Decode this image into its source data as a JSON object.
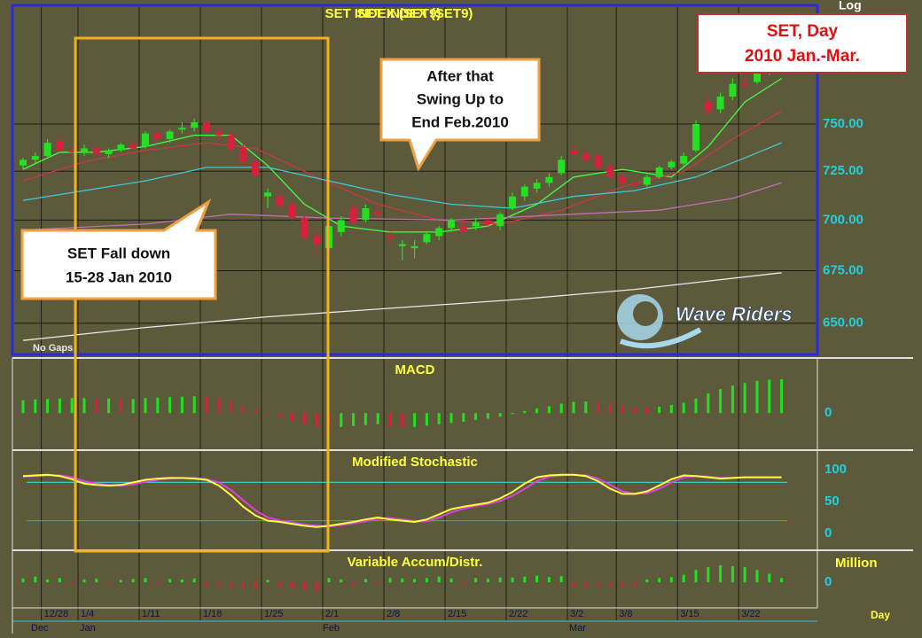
{
  "chart_data": [
    {
      "type": "candlestick",
      "title": "SET INDEX (SET9)",
      "scale_label": "Log",
      "log_scale": true,
      "note": "No Gaps",
      "categories": [
        null,
        null,
        "12/28",
        null,
        null,
        "1/4",
        null,
        null,
        null,
        null,
        "1/11",
        null,
        null,
        null,
        null,
        "1/18",
        null,
        null,
        null,
        null,
        "1/25",
        null,
        null,
        null,
        null,
        "2/1",
        null,
        null,
        null,
        null,
        "2/8",
        null,
        null,
        null,
        null,
        "2/15",
        null,
        null,
        null,
        null,
        "2/22",
        null,
        null,
        null,
        null,
        "3/2",
        null,
        null,
        null,
        "3/8",
        null,
        null,
        null,
        null,
        "3/15",
        null,
        null,
        null,
        null,
        "3/22",
        null,
        null,
        null
      ],
      "month_labels": [
        "Dec",
        "Jan",
        "Feb",
        "Mar"
      ],
      "x_unit": "Day",
      "open": [
        728,
        731,
        733,
        741,
        736,
        735,
        737,
        734,
        736,
        739,
        738,
        745,
        742,
        747,
        748,
        751,
        746,
        744,
        737,
        730,
        712,
        712,
        708,
        701,
        692,
        686,
        694,
        706,
        700,
        704,
        692,
        687,
        686,
        689,
        692,
        696,
        697,
        697,
        700,
        697,
        706,
        712,
        716,
        719,
        724,
        736,
        734,
        733,
        727,
        722,
        719,
        718,
        722,
        727,
        729,
        736,
        762,
        758,
        765,
        772,
        773,
        779,
        781
      ],
      "high": [
        732,
        735,
        742,
        743,
        738,
        739,
        738,
        737,
        740,
        741,
        746,
        747,
        747,
        751,
        753,
        752,
        748,
        746,
        739,
        731,
        716,
        715,
        710,
        703,
        696,
        699,
        702,
        708,
        708,
        708,
        694,
        690,
        690,
        694,
        697,
        701,
        700,
        701,
        702,
        704,
        714,
        718,
        721,
        724,
        733,
        739,
        736,
        734,
        729,
        724,
        721,
        723,
        728,
        731,
        735,
        752,
        765,
        767,
        775,
        776,
        780,
        784,
        786
      ],
      "low": [
        726,
        729,
        732,
        735,
        733,
        733,
        733,
        732,
        735,
        736,
        737,
        741,
        740,
        745,
        746,
        745,
        741,
        735,
        728,
        722,
        706,
        705,
        700,
        690,
        682,
        684,
        692,
        698,
        699,
        701,
        688,
        680,
        681,
        688,
        690,
        694,
        693,
        695,
        697,
        695,
        705,
        710,
        714,
        717,
        723,
        733,
        730,
        726,
        721,
        717,
        716,
        717,
        721,
        726,
        728,
        735,
        755,
        756,
        763,
        770,
        772,
        777,
        779
      ],
      "close": [
        731,
        733,
        740,
        736,
        735,
        737,
        734,
        736,
        739,
        737,
        745,
        742,
        746,
        748,
        751,
        746,
        744,
        737,
        730,
        723,
        714,
        707,
        701,
        691,
        688,
        697,
        700,
        699,
        706,
        703,
        691,
        688,
        687,
        693,
        696,
        700,
        694,
        699,
        698,
        703,
        712,
        717,
        719,
        722,
        731,
        734,
        731,
        727,
        722,
        719,
        718,
        722,
        727,
        730,
        733,
        750,
        757,
        765,
        772,
        771,
        778,
        781,
        783
      ],
      "up_color": "#22e022",
      "down_color": "#d8203c",
      "ylim": [
        637,
        815
      ],
      "yticks": [
        {
          "value": 750,
          "label": "750.00"
        },
        {
          "value": 725,
          "label": "725.00"
        },
        {
          "value": 700,
          "label": "700.00"
        },
        {
          "value": 675,
          "label": "675.00"
        },
        {
          "value": 650,
          "label": "650.00"
        }
      ],
      "moving_averages": [
        {
          "color": "#40ff40",
          "x": [
            0,
            3,
            6,
            10,
            14,
            17,
            20,
            23,
            26,
            30,
            34,
            38,
            42,
            45,
            49,
            53,
            56,
            59,
            62
          ],
          "values": [
            726,
            735,
            735,
            738,
            744,
            744,
            728,
            708,
            697,
            694,
            694,
            697,
            708,
            722,
            726,
            722,
            738,
            762,
            775
          ]
        },
        {
          "color": "#c83848",
          "x": [
            0,
            5,
            10,
            15,
            19,
            24,
            29,
            34,
            39,
            44,
            49,
            54,
            58,
            62
          ],
          "values": [
            720,
            730,
            736,
            740,
            737,
            722,
            708,
            700,
            698,
            705,
            717,
            725,
            742,
            757
          ]
        },
        {
          "color": "#40c8d8",
          "x": [
            0,
            5,
            10,
            15,
            20,
            25,
            30,
            35,
            40,
            45,
            50,
            55,
            59,
            62
          ],
          "values": [
            710,
            715,
            720,
            727,
            727,
            720,
            713,
            708,
            706,
            712,
            715,
            722,
            732,
            740
          ]
        },
        {
          "color": "#c070b8",
          "x": [
            0,
            10,
            17,
            25,
            35,
            45,
            52,
            58,
            62
          ],
          "values": [
            695,
            698,
            703,
            701,
            700,
            703,
            705,
            711,
            719
          ]
        },
        {
          "color": "#e8e8e8",
          "x": [
            0,
            10,
            20,
            30,
            40,
            50,
            62
          ],
          "values": [
            642,
            648,
            653,
            657,
            661,
            666,
            674
          ]
        }
      ],
      "annotations": [
        {
          "text": [
            "SET, Day",
            "2010 Jan.-Mar."
          ]
        },
        {
          "text": [
            "After that",
            "Swing Up to",
            "End Feb.2010"
          ]
        },
        {
          "text": [
            "SET Fall down",
            "15-28 Jan 2010"
          ]
        }
      ],
      "watermark": "Wave Riders"
    },
    {
      "type": "bar",
      "title": "MACD",
      "up_color": "#22e022",
      "down_color": "#d8203c",
      "values": [
        3,
        3.2,
        3.3,
        3.4,
        3.5,
        3.5,
        3.4,
        3.4,
        3.3,
        3.3,
        3.5,
        3.6,
        3.7,
        3.8,
        3.9,
        3.8,
        3.5,
        2.8,
        1.8,
        0.8,
        -0.3,
        -1,
        -1.8,
        -2.6,
        -3.2,
        -3.4,
        -3.2,
        -3,
        -2.8,
        -2.6,
        -3.2,
        -3.3,
        -3.2,
        -2.9,
        -2.6,
        -2.3,
        -2,
        -1.6,
        -1.3,
        -0.8,
        -0.2,
        0.5,
        1.1,
        1.6,
        2.2,
        2.6,
        2.7,
        2.5,
        2.2,
        1.8,
        1.4,
        1.3,
        1.5,
        1.9,
        2.4,
        3.4,
        4.6,
        5.6,
        6.4,
        7,
        7.5,
        7.8,
        7.9
      ],
      "ylim": [
        -8,
        12
      ],
      "yticks": [
        0
      ]
    },
    {
      "type": "line",
      "title": "Modified Stochastic",
      "series": [
        {
          "color": "#ffff40",
          "values": [
            90,
            91,
            92,
            90,
            85,
            78,
            76,
            75,
            76,
            80,
            84,
            86,
            87,
            87,
            86,
            84,
            75,
            60,
            42,
            28,
            20,
            18,
            15,
            12,
            10,
            12,
            15,
            18,
            22,
            25,
            22,
            20,
            18,
            22,
            30,
            38,
            42,
            45,
            48,
            55,
            65,
            78,
            88,
            91,
            92,
            92,
            90,
            82,
            70,
            62,
            62,
            66,
            75,
            85,
            91,
            90,
            88,
            86,
            87,
            88,
            88,
            88,
            88
          ]
        },
        {
          "color": "#e040e0",
          "values": [
            89,
            90,
            91,
            91,
            88,
            82,
            78,
            76,
            75,
            77,
            81,
            84,
            86,
            87,
            87,
            85,
            80,
            68,
            52,
            36,
            25,
            20,
            17,
            14,
            12,
            11,
            13,
            16,
            19,
            23,
            24,
            22,
            19,
            19,
            25,
            33,
            39,
            43,
            46,
            51,
            59,
            70,
            82,
            89,
            91,
            92,
            91,
            86,
            76,
            66,
            62,
            63,
            70,
            80,
            88,
            90,
            89,
            87,
            87,
            88,
            88,
            88,
            88
          ]
        }
      ],
      "reference_lines": [
        {
          "value": 80,
          "color": "#40c8c8"
        },
        {
          "value": 20,
          "color": "#20c020"
        }
      ],
      "ylim": [
        0,
        100
      ],
      "yticks": [
        100,
        50,
        0
      ]
    },
    {
      "type": "bar",
      "title": "Variable Accum/Distr.",
      "unit_label": "Million",
      "up_color": "#22e022",
      "down_color": "#d8203c",
      "values": [
        0.8,
        1.2,
        0.6,
        0.9,
        -0.5,
        0.6,
        0.8,
        -0.6,
        0.5,
        0.7,
        0.9,
        -0.5,
        0.7,
        0.6,
        0.8,
        -0.7,
        -0.8,
        -1.2,
        -1.4,
        -1.5,
        0.5,
        -1,
        -1.3,
        -1.5,
        -1.8,
        0.9,
        0.6,
        -0.8,
        0.7,
        -0.5,
        0.9,
        0.8,
        0.7,
        0.9,
        1.2,
        0.8,
        -0.6,
        0.9,
        0.8,
        1,
        1,
        1.2,
        1.4,
        1.1,
        1.3,
        -0.9,
        -1.2,
        -1.1,
        -0.9,
        -1,
        -0.8,
        0.6,
        0.9,
        1.1,
        1.6,
        2.6,
        3.2,
        3.6,
        3.4,
        3.2,
        2.6,
        1.8,
        0.9
      ],
      "ylim": [
        -8,
        6
      ],
      "yticks": [
        0
      ]
    }
  ]
}
